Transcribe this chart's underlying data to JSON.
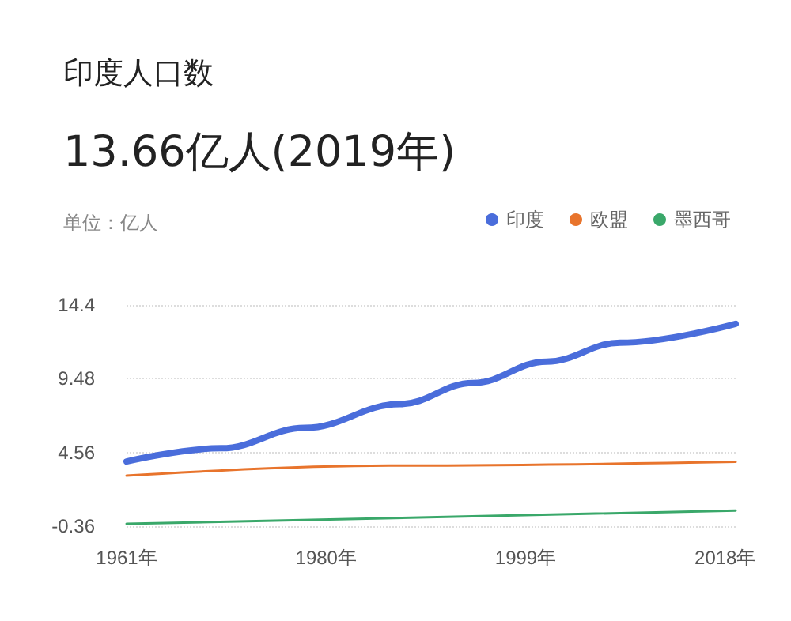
{
  "chart_data": {
    "type": "line",
    "title": "印度人口数",
    "subtitle": "13.66亿人(2019年)",
    "ylabel": "单位：亿人",
    "xlim": [
      1961,
      2019
    ],
    "xticks": [
      {
        "value": 1961,
        "label": "1961年"
      },
      {
        "value": 1980,
        "label": "1980年"
      },
      {
        "value": 1999,
        "label": "1999年"
      },
      {
        "value": 2018,
        "label": "2018年"
      }
    ],
    "ylim": [
      -0.36,
      14.4
    ],
    "yticks": [
      -0.36,
      4.56,
      9.48,
      14.4
    ],
    "grid": "y",
    "legend": "top right",
    "marker": "none",
    "line_style": "solid",
    "series": [
      {
        "name": "印度",
        "color": "#4a6ddb",
        "x": [
          1961,
          1970,
          1978,
          1987,
          1994,
          2001,
          2008,
          2019
        ],
        "values": [
          3.96,
          4.84,
          6.2,
          7.78,
          9.2,
          10.62,
          11.88,
          13.14
        ]
      },
      {
        "name": "欧盟",
        "color": "#e8742c",
        "x": [
          1961,
          1986,
          2019
        ],
        "values": [
          3.01,
          3.68,
          3.93
        ]
      },
      {
        "name": "墨西哥",
        "color": "#3aa86a",
        "x": [
          1961,
          2019
        ],
        "values": [
          -0.2,
          0.68
        ]
      }
    ]
  }
}
